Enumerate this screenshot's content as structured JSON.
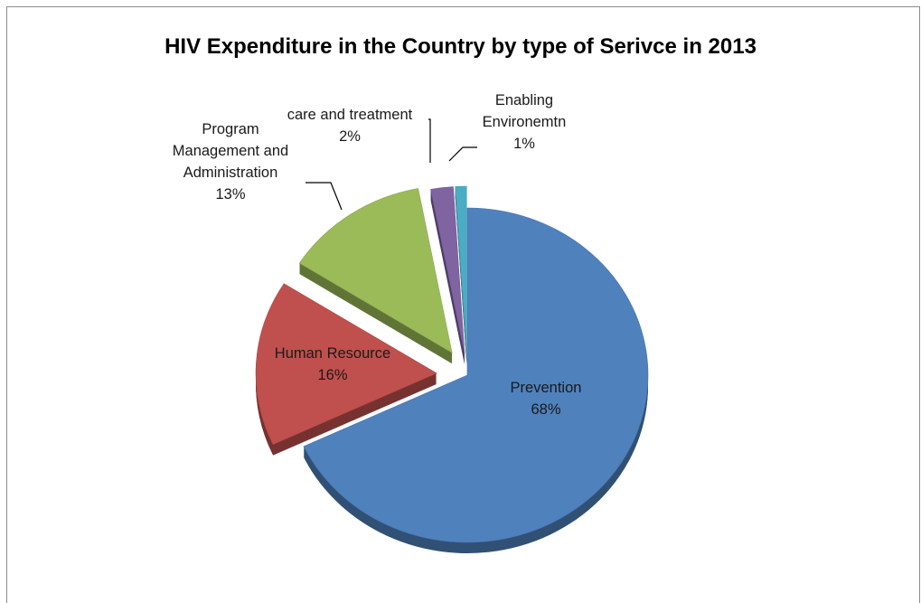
{
  "chart_data": {
    "type": "pie",
    "title": "HIV Expenditure in the Country by type of Serivce in 2013",
    "slices": [
      {
        "label_lines": [
          "Prevention"
        ],
        "percent_label": "68%",
        "value": 68,
        "color": "#4f81bd"
      },
      {
        "label_lines": [
          "Human Resource"
        ],
        "percent_label": "16%",
        "value": 16,
        "color": "#c0504d"
      },
      {
        "label_lines": [
          "Program",
          "Management and",
          "Administration"
        ],
        "percent_label": "13%",
        "value": 13,
        "color": "#9bbb59"
      },
      {
        "label_lines": [
          "care and treatment"
        ],
        "percent_label": "2%",
        "value": 2,
        "color": "#8064a2"
      },
      {
        "label_lines": [
          "Enabling",
          "Environemtn"
        ],
        "percent_label": "1%",
        "value": 1,
        "color": "#4bacc6"
      }
    ],
    "exploded": true,
    "legend": "none"
  }
}
